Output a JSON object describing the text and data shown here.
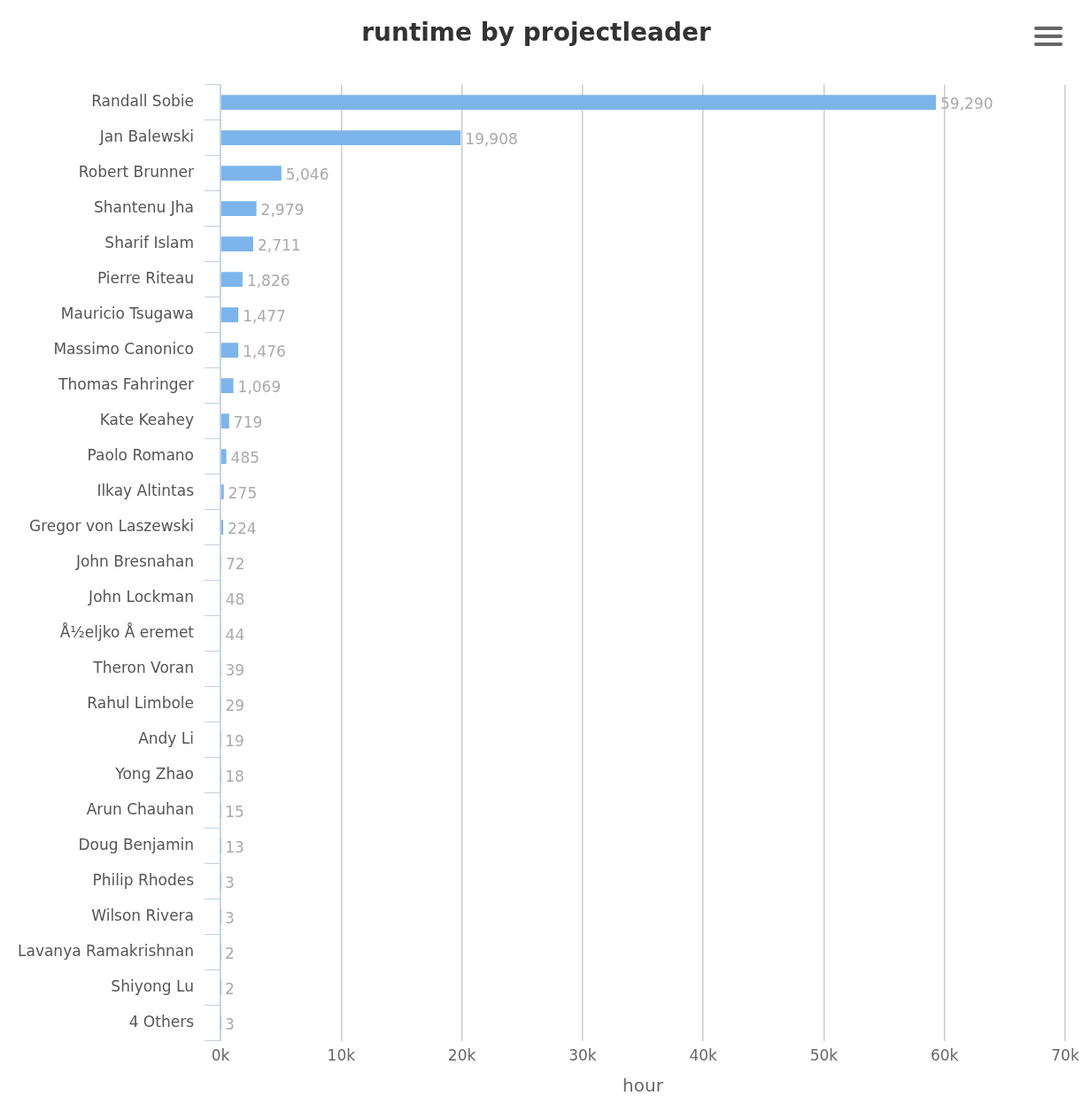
{
  "chart_data": {
    "type": "bar",
    "orientation": "horizontal",
    "title": "runtime by projectleader",
    "xlabel": "hour",
    "categories": [
      "Randall Sobie",
      "Jan Balewski",
      "Robert Brunner",
      "Shantenu Jha",
      "Sharif Islam",
      "Pierre Riteau",
      "Mauricio Tsugawa",
      "Massimo Canonico",
      "Thomas Fahringer",
      "Kate Keahey",
      "Paolo Romano",
      "Ilkay Altintas",
      "Gregor von Laszewski",
      "John Bresnahan",
      "John Lockman",
      "Å½eljko Å eremet",
      "Theron Voran",
      "Rahul Limbole",
      "Andy Li",
      "Yong Zhao",
      "Arun Chauhan",
      "Doug Benjamin",
      "Philip Rhodes",
      "Wilson Rivera",
      "Lavanya Ramakrishnan",
      "Shiyong Lu",
      "4 Others"
    ],
    "values": [
      59290,
      19908,
      5046,
      2979,
      2711,
      1826,
      1477,
      1476,
      1069,
      719,
      485,
      275,
      224,
      72,
      48,
      44,
      39,
      29,
      19,
      18,
      15,
      13,
      3,
      3,
      2,
      2,
      3
    ],
    "value_labels": [
      "59,290",
      "19,908",
      "5,046",
      "2,979",
      "2,711",
      "1,826",
      "1,477",
      "1,476",
      "1,069",
      "719",
      "485",
      "275",
      "224",
      "72",
      "48",
      "44",
      "39",
      "29",
      "19",
      "18",
      "15",
      "13",
      "3",
      "3",
      "2",
      "2",
      "3"
    ],
    "color": "#7cb5ec",
    "grid": "x",
    "legend": false,
    "xlim": [
      0,
      70000
    ],
    "xticks": [
      {
        "value": 0,
        "label": "0k"
      },
      {
        "value": 10000,
        "label": "10k"
      },
      {
        "value": 20000,
        "label": "20k"
      },
      {
        "value": 30000,
        "label": "30k"
      },
      {
        "value": 40000,
        "label": "40k"
      },
      {
        "value": 50000,
        "label": "50k"
      },
      {
        "value": 60000,
        "label": "60k"
      },
      {
        "value": 70000,
        "label": "70k"
      }
    ]
  }
}
